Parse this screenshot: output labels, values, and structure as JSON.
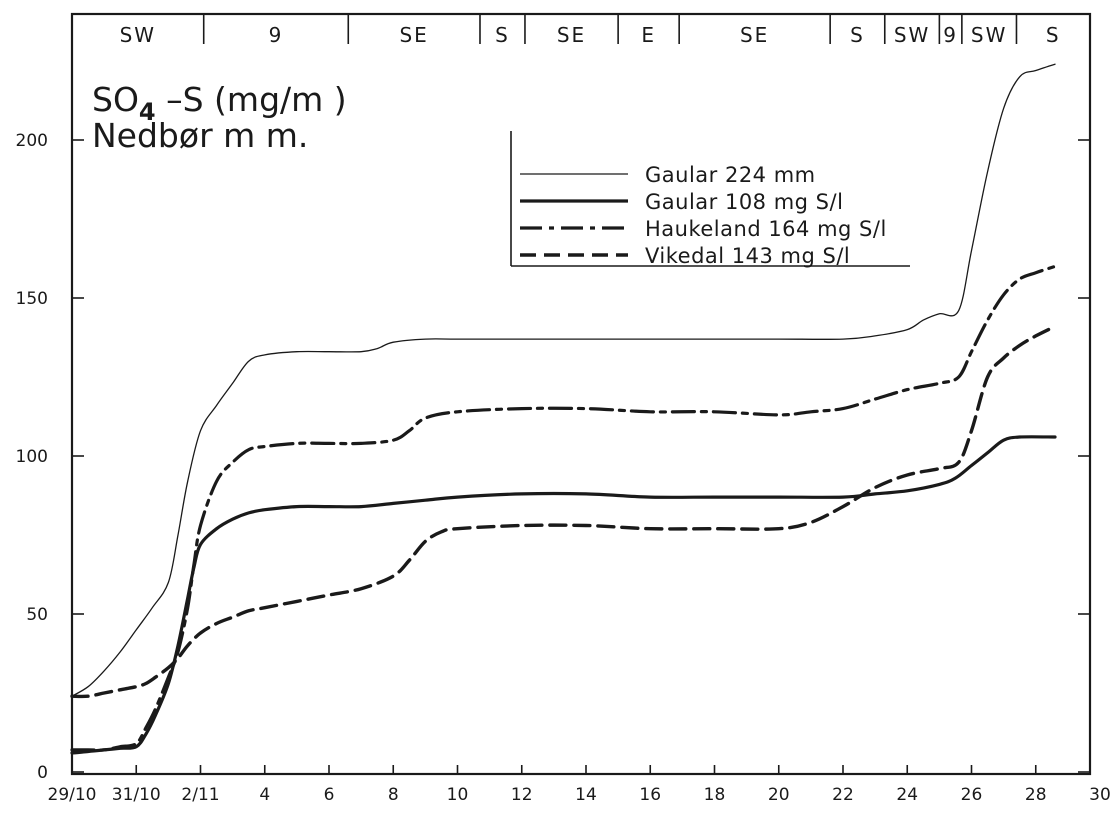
{
  "chart_data": {
    "type": "line",
    "title_line1_main": "SO",
    "title_line1_sub": "4",
    "title_line1_rest": " –S (mg/m )",
    "title_line2": "Nedbør m m.",
    "xlabel": "",
    "ylabel": "",
    "x_ticks": [
      {
        "x": 0,
        "label": "29/10"
      },
      {
        "x": 2,
        "label": "31/10"
      },
      {
        "x": 4,
        "label": "2/11"
      },
      {
        "x": 6,
        "label": "4"
      },
      {
        "x": 8,
        "label": "6"
      },
      {
        "x": 10,
        "label": "8"
      },
      {
        "x": 12,
        "label": "10"
      },
      {
        "x": 14,
        "label": "12"
      },
      {
        "x": 16,
        "label": "14"
      },
      {
        "x": 18,
        "label": "16"
      },
      {
        "x": 20,
        "label": "18"
      },
      {
        "x": 22,
        "label": "20"
      },
      {
        "x": 24,
        "label": "22"
      },
      {
        "x": 26,
        "label": "24"
      },
      {
        "x": 28,
        "label": "26"
      },
      {
        "x": 30,
        "label": "28"
      },
      {
        "x": 32,
        "label": "30"
      }
    ],
    "y_ticks": [
      {
        "y": 0,
        "label": "0"
      },
      {
        "y": 50,
        "label": "50"
      },
      {
        "y": 100,
        "label": "100"
      },
      {
        "y": 150,
        "label": "150"
      },
      {
        "y": 200,
        "label": "200"
      }
    ],
    "xlim": [
      0,
      32
    ],
    "ylim": [
      0,
      237
    ],
    "grid": false,
    "legend_position": "top-right",
    "wind_directions": [
      {
        "from": 0,
        "to": 4.1,
        "label": "SW"
      },
      {
        "from": 4.1,
        "to": 8.6,
        "label": "9"
      },
      {
        "from": 8.6,
        "to": 12.7,
        "label": "SE"
      },
      {
        "from": 12.7,
        "to": 14.1,
        "label": "S"
      },
      {
        "from": 14.1,
        "to": 17.0,
        "label": "SE"
      },
      {
        "from": 17.0,
        "to": 18.9,
        "label": "E"
      },
      {
        "from": 18.9,
        "to": 23.6,
        "label": "SE"
      },
      {
        "from": 23.6,
        "to": 25.3,
        "label": "S"
      },
      {
        "from": 25.3,
        "to": 27.0,
        "label": "SW"
      },
      {
        "from": 27.0,
        "to": 27.7,
        "label": "9"
      },
      {
        "from": 27.7,
        "to": 29.4,
        "label": "SW"
      },
      {
        "from": 29.4,
        "to": 32,
        "label": "S"
      }
    ],
    "series": [
      {
        "name": "Gaular 224 mm",
        "style": "thin",
        "points": [
          [
            0,
            24
          ],
          [
            0.5,
            27
          ],
          [
            1,
            32
          ],
          [
            1.5,
            38
          ],
          [
            2,
            45
          ],
          [
            2.5,
            52
          ],
          [
            3,
            60
          ],
          [
            3.3,
            75
          ],
          [
            3.6,
            92
          ],
          [
            4,
            108
          ],
          [
            4.5,
            116
          ],
          [
            5,
            123
          ],
          [
            5.5,
            130
          ],
          [
            6,
            132
          ],
          [
            7,
            133
          ],
          [
            8,
            133
          ],
          [
            9,
            133
          ],
          [
            9.5,
            134
          ],
          [
            10,
            136
          ],
          [
            11,
            137
          ],
          [
            12,
            137
          ],
          [
            14,
            137
          ],
          [
            16,
            137
          ],
          [
            18,
            137
          ],
          [
            20,
            137
          ],
          [
            22,
            137
          ],
          [
            24,
            137
          ],
          [
            25,
            138
          ],
          [
            26,
            140
          ],
          [
            26.5,
            143
          ],
          [
            27,
            145
          ],
          [
            27.6,
            146
          ],
          [
            28,
            165
          ],
          [
            28.5,
            190
          ],
          [
            29,
            210
          ],
          [
            29.5,
            220
          ],
          [
            30,
            222
          ],
          [
            30.6,
            224
          ]
        ]
      },
      {
        "name": "Gaular 108 mg S/l",
        "style": "thick",
        "points": [
          [
            0,
            6
          ],
          [
            0.5,
            6.5
          ],
          [
            1,
            7
          ],
          [
            1.5,
            7.5
          ],
          [
            2,
            8
          ],
          [
            2.3,
            12
          ],
          [
            2.6,
            18
          ],
          [
            3,
            28
          ],
          [
            3.3,
            40
          ],
          [
            3.6,
            55
          ],
          [
            3.8,
            65
          ],
          [
            4,
            72
          ],
          [
            4.5,
            77
          ],
          [
            5,
            80
          ],
          [
            5.5,
            82
          ],
          [
            6,
            83
          ],
          [
            7,
            84
          ],
          [
            8,
            84
          ],
          [
            9,
            84
          ],
          [
            10,
            85
          ],
          [
            11,
            86
          ],
          [
            12,
            87
          ],
          [
            14,
            88
          ],
          [
            16,
            88
          ],
          [
            18,
            87
          ],
          [
            20,
            87
          ],
          [
            22,
            87
          ],
          [
            24,
            87
          ],
          [
            25,
            88
          ],
          [
            26,
            89
          ],
          [
            27,
            91
          ],
          [
            27.5,
            93
          ],
          [
            28,
            97
          ],
          [
            28.5,
            101
          ],
          [
            29,
            105
          ],
          [
            29.5,
            106
          ],
          [
            30.6,
            106
          ]
        ]
      },
      {
        "name": "Haukeland 164 mg S/l",
        "style": "dashdot",
        "points": [
          [
            0,
            7
          ],
          [
            0.5,
            7
          ],
          [
            1,
            7
          ],
          [
            1.5,
            8
          ],
          [
            2,
            9
          ],
          [
            2.3,
            14
          ],
          [
            2.6,
            20
          ],
          [
            3,
            30
          ],
          [
            3.3,
            38
          ],
          [
            3.6,
            52
          ],
          [
            3.8,
            66
          ],
          [
            4,
            78
          ],
          [
            4.5,
            92
          ],
          [
            5,
            98
          ],
          [
            5.5,
            102
          ],
          [
            6,
            103
          ],
          [
            7,
            104
          ],
          [
            8,
            104
          ],
          [
            9,
            104
          ],
          [
            10,
            105
          ],
          [
            10.5,
            108
          ],
          [
            11,
            112
          ],
          [
            12,
            114
          ],
          [
            14,
            115
          ],
          [
            16,
            115
          ],
          [
            18,
            114
          ],
          [
            20,
            114
          ],
          [
            22,
            113
          ],
          [
            23,
            114
          ],
          [
            24,
            115
          ],
          [
            25,
            118
          ],
          [
            26,
            121
          ],
          [
            27,
            123
          ],
          [
            27.6,
            125
          ],
          [
            28,
            133
          ],
          [
            28.5,
            143
          ],
          [
            29,
            151
          ],
          [
            29.5,
            156
          ],
          [
            30,
            158
          ],
          [
            30.6,
            160
          ]
        ]
      },
      {
        "name": "Vikedal 143 mg S/l",
        "style": "dashed",
        "points": [
          [
            0,
            24
          ],
          [
            0.5,
            24
          ],
          [
            1,
            25
          ],
          [
            1.5,
            26
          ],
          [
            2,
            27
          ],
          [
            2.3,
            28
          ],
          [
            2.6,
            30
          ],
          [
            3,
            33
          ],
          [
            3.3,
            36
          ],
          [
            3.6,
            40
          ],
          [
            4,
            44
          ],
          [
            4.5,
            47
          ],
          [
            5,
            49
          ],
          [
            5.5,
            51
          ],
          [
            6,
            52
          ],
          [
            7,
            54
          ],
          [
            8,
            56
          ],
          [
            9,
            58
          ],
          [
            10,
            62
          ],
          [
            10.5,
            67
          ],
          [
            11,
            73
          ],
          [
            11.5,
            76
          ],
          [
            12,
            77
          ],
          [
            14,
            78
          ],
          [
            16,
            78
          ],
          [
            18,
            77
          ],
          [
            20,
            77
          ],
          [
            22,
            77
          ],
          [
            23,
            79
          ],
          [
            24,
            84
          ],
          [
            25,
            90
          ],
          [
            26,
            94
          ],
          [
            27,
            96
          ],
          [
            27.6,
            98
          ],
          [
            28,
            108
          ],
          [
            28.5,
            125
          ],
          [
            29,
            131
          ],
          [
            29.5,
            135
          ],
          [
            30,
            138
          ],
          [
            30.6,
            141
          ]
        ]
      }
    ]
  }
}
